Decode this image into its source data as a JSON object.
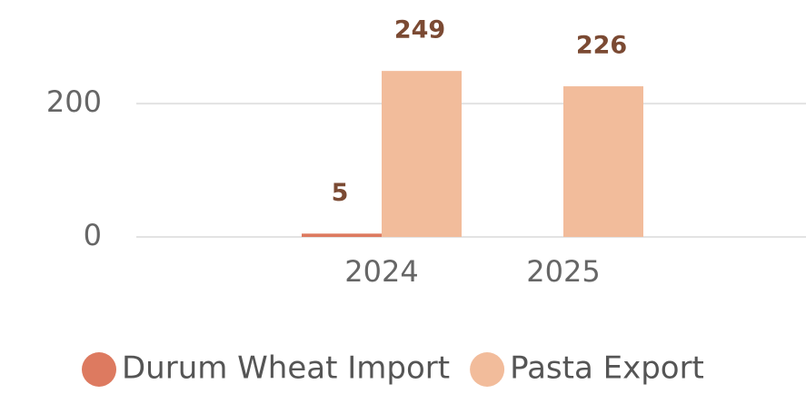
{
  "chart_data": {
    "type": "bar",
    "categories": [
      "2024",
      "2025"
    ],
    "series": [
      {
        "name": "Durum Wheat Import",
        "color": "#dd7a60",
        "values": [
          5,
          null
        ]
      },
      {
        "name": "Pasta Export",
        "color": "#f2bc9b",
        "values": [
          249,
          226
        ]
      }
    ],
    "ylim": [
      0,
      350
    ],
    "yticks": [
      0,
      200
    ],
    "grid": true,
    "legend": "bottom"
  }
}
